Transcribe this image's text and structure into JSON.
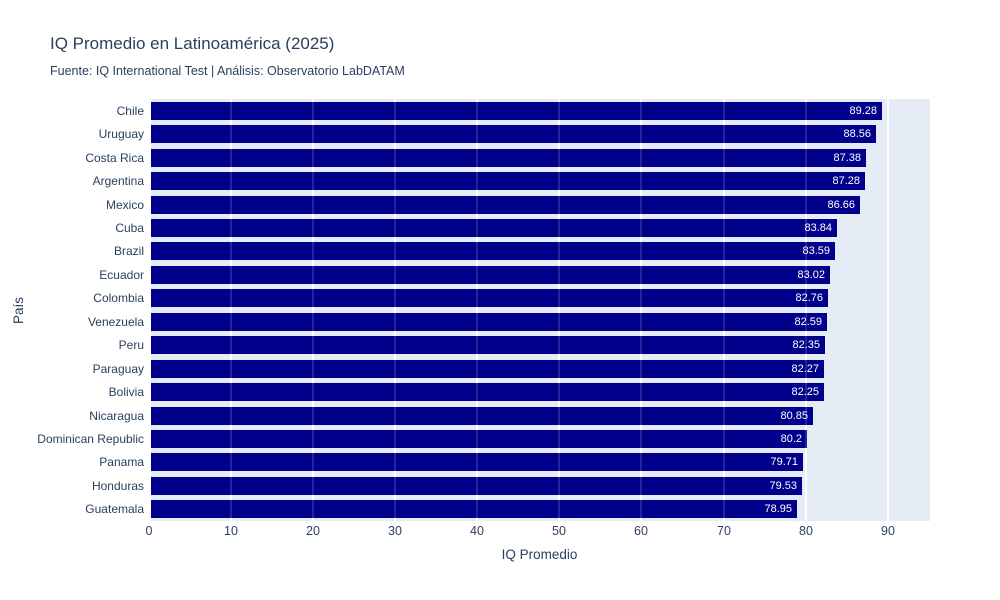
{
  "header": {
    "title": "IQ Promedio en Latinoamérica (2025)",
    "subtitle": "Fuente: IQ International Test | Análisis: Observatorio LabDATAM"
  },
  "chart_data": {
    "type": "bar",
    "orientation": "horizontal",
    "title": "IQ Promedio en Latinoamérica (2025)",
    "subtitle": "Fuente: IQ International Test | Análisis: Observatorio LabDATAM",
    "xlabel": "IQ Promedio",
    "ylabel": "País",
    "categories": [
      "Chile",
      "Uruguay",
      "Costa Rica",
      "Argentina",
      "Mexico",
      "Cuba",
      "Brazil",
      "Ecuador",
      "Colombia",
      "Venezuela",
      "Peru",
      "Paraguay",
      "Bolivia",
      "Nicaragua",
      "Dominican Republic",
      "Panama",
      "Honduras",
      "Guatemala"
    ],
    "values": [
      89.28,
      88.56,
      87.38,
      87.28,
      86.66,
      83.84,
      83.59,
      83.02,
      82.76,
      82.59,
      82.35,
      82.27,
      82.25,
      80.85,
      80.2,
      79.71,
      79.53,
      78.95
    ],
    "value_labels": [
      "89.28",
      "88.56",
      "87.38",
      "87.28",
      "86.66",
      "83.84",
      "83.59",
      "83.02",
      "82.76",
      "82.59",
      "82.35",
      "82.27",
      "82.25",
      "80.85",
      "80.2",
      "79.71",
      "79.53",
      "78.95"
    ],
    "xticks": [
      0,
      10,
      20,
      30,
      40,
      50,
      60,
      70,
      80,
      90
    ],
    "xlim": [
      0,
      95.15
    ],
    "grid": true,
    "legend": "none"
  },
  "colors": {
    "bar": "#00008b",
    "plot_background": "#e5ecf6",
    "gridline": "#ffffff",
    "text": "#2a3f5f",
    "value_label": "#ffffff",
    "page_background": "#ffffff"
  }
}
